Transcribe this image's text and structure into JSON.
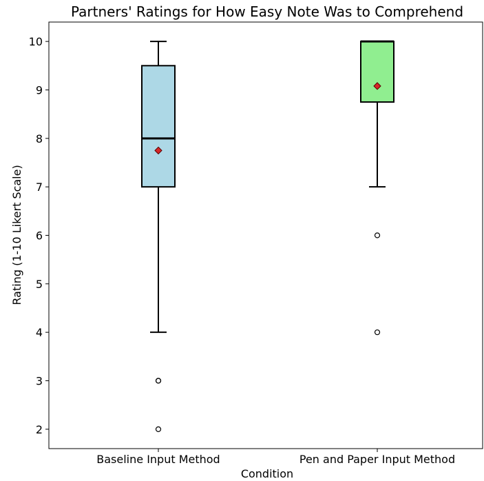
{
  "chart_data": {
    "type": "box",
    "title": "Partners' Ratings for How Easy Note Was to Comprehend",
    "xlabel": "Condition",
    "ylabel": "Rating (1-10 Likert Scale)",
    "ylim": [
      1.6,
      10.4
    ],
    "yticks": [
      2,
      3,
      4,
      5,
      6,
      7,
      8,
      9,
      10
    ],
    "grid": false,
    "legend": "none",
    "categories": [
      "Baseline Input Method",
      "Pen and Paper Input Method"
    ],
    "boxes": [
      {
        "category": "Baseline Input Method",
        "whisker_low": 4,
        "q1": 7,
        "median": 8,
        "q3": 9.5,
        "whisker_high": 10,
        "mean": 7.75,
        "outliers": [
          3,
          3,
          2
        ],
        "color": "#add8e6"
      },
      {
        "category": "Pen and Paper Input Method",
        "whisker_low": 7,
        "q1": 8.75,
        "median": 10,
        "q3": 10,
        "whisker_high": 10,
        "mean": 9.08,
        "outliers": [
          6,
          4
        ],
        "color": "#90ee90"
      }
    ],
    "mean_marker_color": "#d62728"
  }
}
